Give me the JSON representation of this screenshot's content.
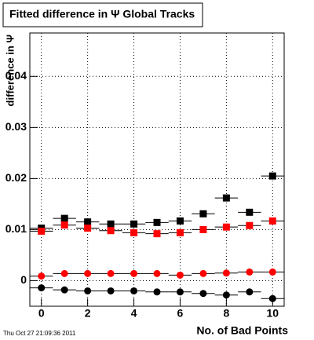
{
  "chart_data": {
    "type": "scatter",
    "title": "Fitted difference in Ψ   Global Tracks",
    "y_label": "difference in Ψ",
    "x_label": "No. of Bad Points",
    "footer": "Thu Oct 27 21:09:36 2011",
    "x": [
      0,
      1,
      2,
      3,
      4,
      5,
      6,
      7,
      8,
      9,
      10
    ],
    "xerr": 0.5,
    "xlim": [
      -0.5,
      10.5
    ],
    "xticks": [
      0,
      2,
      4,
      6,
      8,
      10
    ],
    "ylim": [
      -0.005,
      0.0485
    ],
    "yticks": [
      0,
      0.01,
      0.02,
      0.03,
      0.04
    ],
    "grid": true,
    "series": [
      {
        "color": "#000000",
        "marker": "square",
        "values": [
          0.0103,
          0.0122,
          0.0115,
          0.0111,
          0.0111,
          0.0114,
          0.0117,
          0.0131,
          0.0162,
          0.0134,
          0.0205
        ]
      },
      {
        "color": "#ff0000",
        "marker": "square",
        "values": [
          0.0097,
          0.0109,
          0.0103,
          0.0098,
          0.0094,
          0.0092,
          0.0094,
          0.01,
          0.0105,
          0.0108,
          0.0117
        ]
      },
      {
        "color": "#ff0000",
        "marker": "circle",
        "values": [
          0.0009,
          0.0014,
          0.0014,
          0.0014,
          0.0014,
          0.0014,
          0.0011,
          0.0014,
          0.0015,
          0.0017,
          0.0017
        ]
      },
      {
        "color": "#000000",
        "marker": "circle",
        "values": [
          -0.0014,
          -0.0018,
          -0.002,
          -0.002,
          -0.002,
          -0.0022,
          -0.0022,
          -0.0025,
          -0.0028,
          -0.0022,
          -0.0035
        ]
      }
    ]
  }
}
